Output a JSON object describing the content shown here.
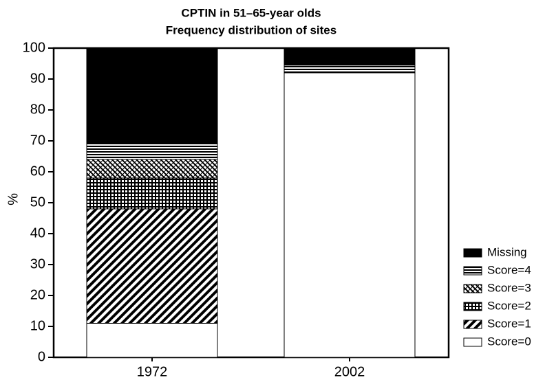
{
  "chart_data": {
    "type": "stacked_bar",
    "title": "CPTIN in 51–65-year olds",
    "subtitle": "Frequency distribution of sites",
    "y_label": "%",
    "categories": [
      "1972",
      "2002"
    ],
    "series": [
      {
        "name": "Score=0",
        "color": "#ffffff",
        "pattern": "none",
        "values": [
          11,
          92
        ]
      },
      {
        "name": "Score=1",
        "color": "#000000",
        "pattern": "diagonal",
        "values": [
          37,
          0
        ]
      },
      {
        "name": "Score=2",
        "color": "#000000",
        "pattern": "grid",
        "values": [
          10,
          0
        ]
      },
      {
        "name": "Score=3",
        "color": "#000000",
        "pattern": "crosshatch",
        "values": [
          6,
          0
        ]
      },
      {
        "name": "Score=4",
        "color": "#000000",
        "pattern": "horizontal",
        "values": [
          5,
          2.5
        ]
      },
      {
        "name": "Missing",
        "color": "#000000",
        "pattern": "solid",
        "values": [
          31,
          5.5
        ]
      }
    ],
    "ylim": [
      0,
      100
    ],
    "yticks": [
      0,
      10,
      20,
      30,
      40,
      50,
      60,
      70,
      80,
      90,
      100
    ],
    "grid": false,
    "legend": "right"
  }
}
